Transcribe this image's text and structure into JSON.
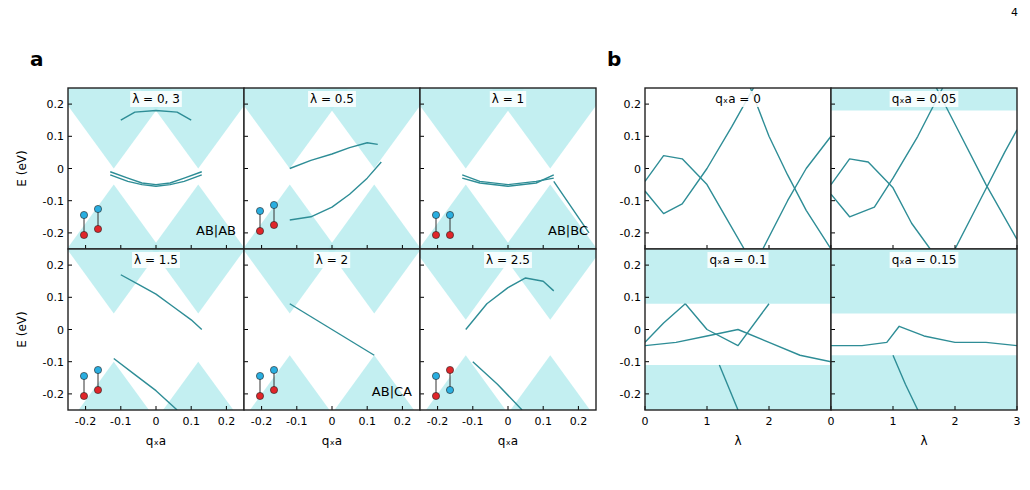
{
  "page_number": "4",
  "chart_data": [
    {
      "type": "line",
      "panel_label": "a",
      "title": "λ = 0, 3",
      "annotation": "AB|AB",
      "y_label": "E (eV)",
      "xlim": [
        -0.25,
        0.25
      ],
      "ylim": [
        -0.25,
        0.25
      ],
      "xticks": [
        -0.2,
        -0.1,
        0,
        0.1,
        0.2
      ],
      "yticks": [
        -0.2,
        -0.1,
        0,
        0.1,
        0.2
      ],
      "tick_labels": "y",
      "color": "#2e8d96",
      "regions": [
        {
          "x": [
            -0.253,
            -0.12,
            0.013
          ],
          "y": [
            -0.25,
            -0.05,
            -0.25
          ]
        },
        {
          "x": [
            -0.013,
            0.12,
            0.253
          ],
          "y": [
            -0.25,
            -0.05,
            -0.25
          ]
        },
        {
          "x": [
            -0.287,
            -0.12,
            0.047
          ],
          "y": [
            0.25,
            0,
            0.25
          ]
        },
        {
          "x": [
            -0.047,
            0.12,
            0.287
          ],
          "y": [
            0.25,
            0,
            0.25
          ]
        }
      ],
      "series": [
        {
          "x": [
            -0.1,
            -0.06,
            0,
            0.06,
            0.1
          ],
          "values": [
            0.15,
            0.175,
            0.18,
            0.175,
            0.15
          ]
        },
        {
          "x": [
            -0.13,
            -0.08,
            -0.04,
            0,
            0.04,
            0.08,
            0.13
          ],
          "values": [
            -0.01,
            -0.03,
            -0.045,
            -0.05,
            -0.045,
            -0.03,
            -0.01
          ]
        },
        {
          "x": [
            -0.13,
            -0.08,
            -0.04,
            0,
            0.04,
            0.08,
            0.13
          ],
          "values": [
            -0.02,
            -0.04,
            -0.05,
            -0.055,
            -0.05,
            -0.04,
            -0.02
          ]
        }
      ]
    },
    {
      "type": "line",
      "title": "λ = 0.5",
      "xlim": [
        -0.25,
        0.25
      ],
      "ylim": [
        -0.25,
        0.25
      ],
      "xticks": [
        -0.2,
        -0.1,
        0,
        0.1,
        0.2
      ],
      "yticks": [
        -0.2,
        -0.1,
        0,
        0.1,
        0.2
      ],
      "tick_labels": false,
      "color": "#2e8d96",
      "regions": [
        {
          "x": [
            -0.253,
            -0.12,
            0.013
          ],
          "y": [
            -0.25,
            -0.05,
            -0.25
          ]
        },
        {
          "x": [
            -0.013,
            0.12,
            0.253
          ],
          "y": [
            -0.25,
            -0.05,
            -0.25
          ]
        },
        {
          "x": [
            -0.287,
            -0.12,
            0.047
          ],
          "y": [
            0.25,
            0,
            0.25
          ]
        },
        {
          "x": [
            -0.047,
            0.12,
            0.287
          ],
          "y": [
            0.25,
            0,
            0.25
          ]
        }
      ],
      "series": [
        {
          "x": [
            -0.12,
            -0.06,
            0,
            0.05,
            0.1,
            0.13
          ],
          "values": [
            0,
            0.025,
            0.045,
            0.065,
            0.08,
            0.075
          ]
        },
        {
          "x": [
            -0.12,
            -0.06,
            0,
            0.05,
            0.1,
            0.14
          ],
          "values": [
            -0.16,
            -0.15,
            -0.12,
            -0.08,
            -0.03,
            0.02
          ]
        }
      ]
    },
    {
      "type": "line",
      "title": "λ = 1",
      "annotation": "AB|BC",
      "xlim": [
        -0.25,
        0.25
      ],
      "ylim": [
        -0.25,
        0.25
      ],
      "xticks": [
        -0.2,
        -0.1,
        0,
        0.1,
        0.2
      ],
      "yticks": [
        -0.2,
        -0.1,
        0,
        0.1,
        0.2
      ],
      "tick_labels": false,
      "color": "#2e8d96",
      "regions": [
        {
          "x": [
            -0.253,
            -0.12,
            0.013
          ],
          "y": [
            -0.25,
            -0.05,
            -0.25
          ]
        },
        {
          "x": [
            -0.013,
            0.12,
            0.253
          ],
          "y": [
            -0.25,
            -0.05,
            -0.25
          ]
        },
        {
          "x": [
            -0.287,
            -0.12,
            0.047
          ],
          "y": [
            0.25,
            0,
            0.25
          ]
        },
        {
          "x": [
            -0.047,
            0.12,
            0.287
          ],
          "y": [
            0.25,
            0,
            0.25
          ]
        }
      ],
      "series": [
        {
          "x": [
            -0.13,
            -0.08,
            0,
            0.08,
            0.13
          ],
          "values": [
            -0.02,
            -0.04,
            -0.05,
            -0.04,
            -0.03
          ]
        },
        {
          "x": [
            -0.13,
            -0.08,
            0,
            0.08,
            0.13
          ],
          "values": [
            -0.03,
            -0.045,
            -0.055,
            -0.045,
            -0.02
          ]
        },
        {
          "x": [
            0.13,
            0.18,
            0.23
          ],
          "values": [
            -0.04,
            -0.12,
            -0.2
          ]
        }
      ]
    },
    {
      "type": "line",
      "title": "λ = 1.5",
      "y_label": "E (eV)",
      "x_label": "qₓa",
      "xlim": [
        -0.25,
        0.25
      ],
      "ylim": [
        -0.25,
        0.25
      ],
      "xticks": [
        -0.2,
        -0.1,
        0,
        0.1,
        0.2
      ],
      "yticks": [
        -0.2,
        -0.1,
        0,
        0.1,
        0.2
      ],
      "color": "#2e8d96",
      "regions": [
        {
          "x": [
            -0.22,
            -0.12,
            -0.02
          ],
          "y": [
            -0.25,
            -0.1,
            -0.25
          ]
        },
        {
          "x": [
            0.02,
            0.12,
            0.22
          ],
          "y": [
            -0.25,
            -0.1,
            -0.25
          ]
        },
        {
          "x": [
            -0.253,
            -0.12,
            0.013
          ],
          "y": [
            0.25,
            0.05,
            0.25
          ]
        },
        {
          "x": [
            -0.013,
            0.12,
            0.253
          ],
          "y": [
            0.25,
            0.05,
            0.25
          ]
        }
      ],
      "series": [
        {
          "x": [
            -0.1,
            -0.05,
            0,
            0.05,
            0.1,
            0.13
          ],
          "values": [
            0.17,
            0.14,
            0.11,
            0.07,
            0.03,
            0
          ]
        },
        {
          "x": [
            -0.12,
            -0.06,
            0,
            0.06
          ],
          "values": [
            -0.09,
            -0.14,
            -0.19,
            -0.25
          ]
        }
      ]
    },
    {
      "type": "line",
      "title": "λ = 2",
      "annotation": "AB|CA",
      "x_label": "qₓa",
      "xlim": [
        -0.25,
        0.25
      ],
      "ylim": [
        -0.25,
        0.25
      ],
      "xticks": [
        -0.2,
        -0.1,
        0,
        0.1,
        0.2
      ],
      "yticks": [
        -0.2,
        -0.1,
        0,
        0.1,
        0.2
      ],
      "tick_labels": "x",
      "color": "#2e8d96",
      "regions": [
        {
          "x": [
            -0.233,
            -0.12,
            -0.007
          ],
          "y": [
            -0.25,
            -0.08,
            -0.25
          ]
        },
        {
          "x": [
            0.007,
            0.12,
            0.233
          ],
          "y": [
            -0.25,
            -0.08,
            -0.25
          ]
        },
        {
          "x": [
            -0.253,
            -0.12,
            0.013
          ],
          "y": [
            0.25,
            0.05,
            0.25
          ]
        },
        {
          "x": [
            -0.013,
            0.12,
            0.253
          ],
          "y": [
            0.25,
            0.05,
            0.25
          ]
        }
      ],
      "series": [
        {
          "x": [
            -0.12,
            0,
            0.12
          ],
          "values": [
            0.08,
            0,
            -0.08
          ]
        }
      ]
    },
    {
      "type": "line",
      "title": "λ = 2.5",
      "x_label": "qₓa",
      "xlim": [
        -0.25,
        0.25
      ],
      "ylim": [
        -0.25,
        0.25
      ],
      "xticks": [
        -0.2,
        -0.1,
        0,
        0.1,
        0.2
      ],
      "yticks": [
        -0.2,
        -0.1,
        0,
        0.1,
        0.2
      ],
      "tick_labels": "x",
      "color": "#2e8d96",
      "regions": [
        {
          "x": [
            -0.233,
            -0.12,
            -0.007
          ],
          "y": [
            -0.25,
            -0.08,
            -0.25
          ]
        },
        {
          "x": [
            0.007,
            0.12,
            0.233
          ],
          "y": [
            -0.25,
            -0.08,
            -0.25
          ]
        },
        {
          "x": [
            -0.267,
            -0.12,
            0.027
          ],
          "y": [
            0.25,
            0.03,
            0.25
          ]
        },
        {
          "x": [
            -0.027,
            0.12,
            0.267
          ],
          "y": [
            0.25,
            0.03,
            0.25
          ]
        }
      ],
      "series": [
        {
          "x": [
            -0.12,
            -0.06,
            0,
            0.05,
            0.1,
            0.13
          ],
          "values": [
            0,
            0.08,
            0.13,
            0.16,
            0.15,
            0.12
          ]
        },
        {
          "x": [
            -0.1,
            -0.03,
            0.04
          ],
          "values": [
            -0.1,
            -0.17,
            -0.25
          ]
        }
      ]
    },
    {
      "type": "line",
      "panel_label": "b",
      "title": "qₓa = 0",
      "xlim": [
        0,
        3
      ],
      "ylim": [
        -0.25,
        0.25
      ],
      "xticks": [
        0,
        1,
        2,
        3
      ],
      "yticks": [
        -0.2,
        -0.1,
        0,
        0.1,
        0.2
      ],
      "tick_labels": "y",
      "color": "#2e8d96",
      "series": [
        {
          "x": [
            0,
            0.3,
            0.6,
            1.0,
            1.3,
            1.6
          ],
          "values": [
            -0.04,
            0.04,
            0.03,
            -0.05,
            -0.15,
            -0.25
          ]
        },
        {
          "x": [
            0,
            0.3,
            0.6,
            1.0,
            1.4,
            1.75
          ],
          "values": [
            -0.07,
            -0.14,
            -0.11,
            0,
            0.13,
            0.25
          ]
        },
        {
          "x": [
            1.7,
            2.0,
            2.3,
            2.6,
            3.0
          ],
          "values": [
            0.25,
            0.1,
            -0.02,
            -0.13,
            -0.25
          ]
        },
        {
          "x": [
            1.9,
            2.3,
            2.6,
            3.0
          ],
          "values": [
            -0.25,
            -0.1,
            0,
            0.1
          ]
        }
      ]
    },
    {
      "type": "line",
      "title": "qₓa = 0.05",
      "xlim": [
        0,
        3
      ],
      "ylim": [
        -0.25,
        0.25
      ],
      "xticks": [
        0,
        1,
        2,
        3
      ],
      "yticks": [
        -0.2,
        -0.1,
        0,
        0.1,
        0.2
      ],
      "tick_labels": false,
      "color": "#2e8d96",
      "regions": [
        {
          "x": [
            0,
            3,
            3,
            0
          ],
          "y": [
            0.18,
            0.18,
            0.25,
            0.25
          ]
        }
      ],
      "series": [
        {
          "x": [
            0,
            0.3,
            0.6,
            1.0,
            1.3,
            1.6
          ],
          "values": [
            -0.05,
            0.03,
            0.02,
            -0.06,
            -0.17,
            -0.25
          ]
        },
        {
          "x": [
            0,
            0.3,
            0.7,
            1.0,
            1.4,
            1.8
          ],
          "values": [
            -0.08,
            -0.15,
            -0.12,
            -0.03,
            0.1,
            0.25
          ]
        },
        {
          "x": [
            1.7,
            2.1,
            2.5,
            3.0
          ],
          "values": [
            0.25,
            0.1,
            -0.05,
            -0.22
          ]
        },
        {
          "x": [
            2.0,
            2.4,
            2.8,
            3.0
          ],
          "values": [
            -0.25,
            -0.1,
            0.05,
            0.12
          ]
        }
      ]
    },
    {
      "type": "line",
      "title": "qₓa = 0.1",
      "y_label_hidden": false,
      "x_label": "λ",
      "xlim": [
        0,
        3
      ],
      "ylim": [
        -0.25,
        0.25
      ],
      "xticks": [
        0,
        1,
        2
      ],
      "yticks": [
        -0.2,
        -0.1,
        0,
        0.1,
        0.2
      ],
      "color": "#2e8d96",
      "regions": [
        {
          "x": [
            0,
            3,
            3,
            0
          ],
          "y": [
            0.08,
            0.08,
            0.25,
            0.25
          ]
        },
        {
          "x": [
            0,
            3,
            3,
            0
          ],
          "y": [
            -0.25,
            -0.25,
            -0.11,
            -0.11
          ]
        }
      ],
      "series": [
        {
          "x": [
            0,
            0.3,
            0.65
          ],
          "values": [
            -0.04,
            0.02,
            0.08
          ]
        },
        {
          "x": [
            0.65,
            1.0,
            1.5,
            2.0
          ],
          "values": [
            0.08,
            0,
            -0.05,
            0.08
          ]
        },
        {
          "x": [
            0,
            0.5,
            1.0,
            1.5,
            2.0,
            2.5,
            3.0
          ],
          "values": [
            -0.05,
            -0.04,
            -0.02,
            0,
            -0.04,
            -0.08,
            -0.1
          ]
        },
        {
          "x": [
            1.2,
            1.5
          ],
          "values": [
            -0.11,
            -0.25
          ]
        }
      ]
    },
    {
      "type": "line",
      "title": "qₓa = 0.15",
      "x_label": "λ",
      "xlim": [
        0,
        3
      ],
      "ylim": [
        -0.25,
        0.25
      ],
      "xticks": [
        0,
        1,
        2,
        3
      ],
      "yticks": [
        -0.2,
        -0.1,
        0,
        0.1,
        0.2
      ],
      "tick_labels": "x",
      "color": "#2e8d96",
      "regions": [
        {
          "x": [
            0,
            3,
            3,
            0
          ],
          "y": [
            0.05,
            0.05,
            0.25,
            0.25
          ]
        },
        {
          "x": [
            0,
            3,
            3,
            0
          ],
          "y": [
            -0.25,
            -0.25,
            -0.08,
            -0.08
          ]
        }
      ],
      "series": [
        {
          "x": [
            0,
            0.5,
            0.9,
            1.1,
            1.5,
            2.0,
            2.5,
            3.0
          ],
          "values": [
            -0.05,
            -0.05,
            -0.04,
            0.01,
            -0.02,
            -0.04,
            -0.04,
            -0.05
          ]
        },
        {
          "x": [
            1.0,
            1.2,
            1.4
          ],
          "values": [
            -0.08,
            -0.17,
            -0.25
          ]
        }
      ]
    }
  ]
}
